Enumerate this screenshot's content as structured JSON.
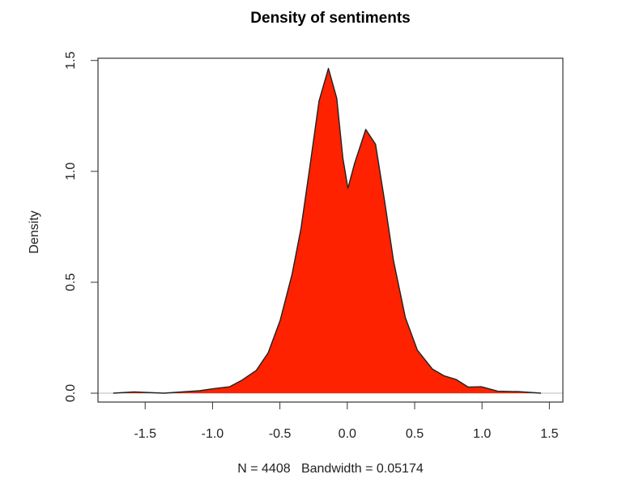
{
  "chart_data": {
    "type": "area",
    "title": "Density of sentiments",
    "xlabel": "N = 4408   Bandwidth = 0.05174",
    "ylabel": "Density",
    "xlim": [
      -1.85,
      1.6
    ],
    "ylim": [
      -0.04,
      1.51
    ],
    "x_ticks": [
      -1.5,
      -1.0,
      -0.5,
      0.0,
      0.5,
      1.0,
      1.5
    ],
    "x_tick_labels": [
      "-1.5",
      "-1.0",
      "-0.5",
      "0.0",
      "0.5",
      "1.0",
      "1.5"
    ],
    "y_ticks": [
      0.0,
      0.5,
      1.0,
      1.5
    ],
    "y_tick_labels": [
      "0.0",
      "0.5",
      "1.0",
      "1.5"
    ],
    "grid": false,
    "fill_color": "#FF2200",
    "line_color": "#222222",
    "baseline_color": "#BBBBBB",
    "series": [
      {
        "x": [
          -1.737,
          -1.582,
          -1.361,
          -1.096,
          -0.985,
          -0.874,
          -0.786,
          -0.675,
          -0.587,
          -0.498,
          -0.41,
          -0.343,
          -0.277,
          -0.21,
          -0.14,
          -0.078,
          -0.033,
          0.005,
          0.055,
          0.137,
          0.21,
          0.277,
          0.343,
          0.431,
          0.52,
          0.631,
          0.719,
          0.807,
          0.896,
          0.995,
          1.117,
          1.272,
          1.438
        ],
        "y": [
          0.0,
          0.006,
          0.0,
          0.011,
          0.021,
          0.029,
          0.057,
          0.103,
          0.182,
          0.328,
          0.536,
          0.744,
          1.024,
          1.317,
          1.464,
          1.33,
          1.061,
          0.924,
          1.037,
          1.189,
          1.122,
          0.866,
          0.597,
          0.341,
          0.194,
          0.109,
          0.078,
          0.062,
          0.028,
          0.029,
          0.009,
          0.007,
          0.0
        ]
      }
    ]
  }
}
